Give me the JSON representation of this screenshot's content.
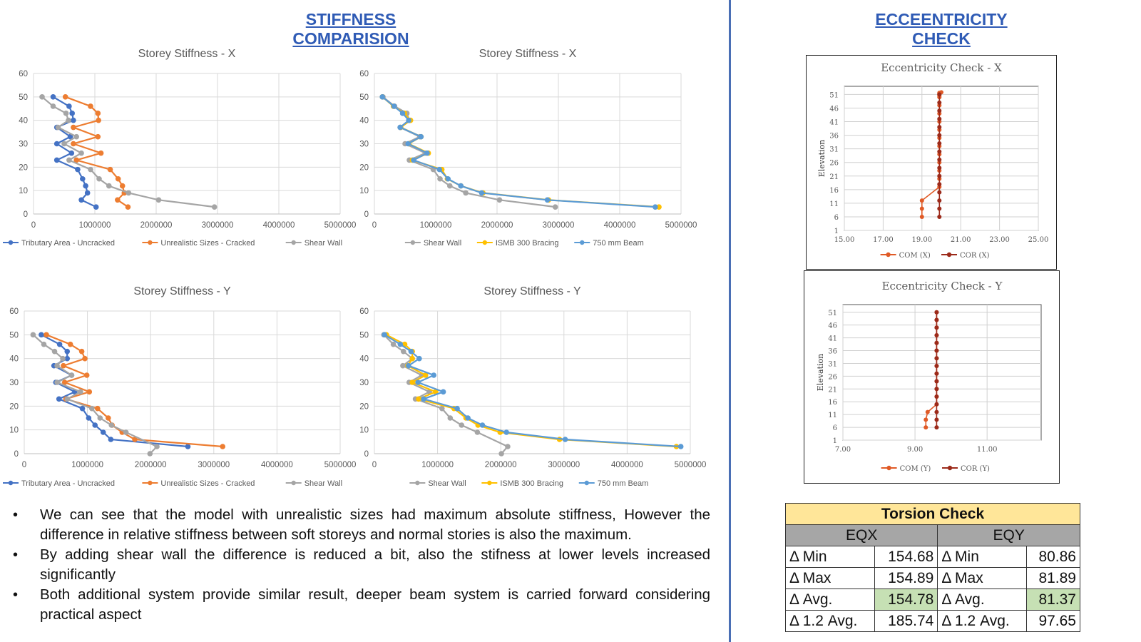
{
  "page": {
    "left_title": "STIFFNESS COMPARISION",
    "right_title": "ECCEENTRICITY CHECK"
  },
  "chart_data": [
    {
      "id": "sx1",
      "type": "line",
      "title": "Storey Stiffness - X",
      "xlim": [
        0,
        5000000
      ],
      "ylim": [
        0,
        60
      ],
      "xticks": [
        0,
        1000000,
        2000000,
        3000000,
        4000000,
        5000000
      ],
      "xtick_labels": [
        "0",
        "1000000",
        "2000000",
        "3000000",
        "4000000",
        "5000000"
      ],
      "yticks": [
        0,
        10,
        20,
        30,
        40,
        50,
        60
      ],
      "ytick_labels": [
        "0",
        "10",
        "20",
        "30",
        "40",
        "50",
        "60"
      ],
      "grid": true,
      "legend": "bottom",
      "series": [
        {
          "name": "Tributary Area - Uncracked",
          "color": "#4472c4",
          "x": [
            1020000,
            780000,
            880000,
            850000,
            800000,
            720000,
            380000,
            620000,
            380000,
            600000,
            380000,
            650000,
            630000,
            580000,
            320000
          ],
          "y": [
            3,
            6,
            9,
            12,
            15,
            19,
            23,
            26,
            30,
            33,
            37,
            40,
            43,
            46,
            50
          ]
        },
        {
          "name": "Unrealistic Sizes - Cracked",
          "color": "#ed7d31",
          "x": [
            1540000,
            1370000,
            1480000,
            1450000,
            1380000,
            1250000,
            700000,
            1100000,
            650000,
            1050000,
            650000,
            1060000,
            1050000,
            930000,
            520000
          ],
          "y": [
            3,
            6,
            9,
            12,
            15,
            19,
            23,
            26,
            30,
            33,
            37,
            40,
            43,
            46,
            50
          ]
        },
        {
          "name": "Shear Wall",
          "color": "#a5a5a5",
          "x": [
            2950000,
            2040000,
            1550000,
            1230000,
            1070000,
            930000,
            580000,
            780000,
            500000,
            700000,
            400000,
            570000,
            530000,
            320000,
            140000
          ],
          "y": [
            3,
            6,
            9,
            12,
            15,
            19,
            23,
            26,
            30,
            33,
            37,
            40,
            43,
            46,
            50
          ]
        }
      ]
    },
    {
      "id": "sx2",
      "type": "line",
      "title": "Storey Stiffness - X",
      "xlim": [
        0,
        5000000
      ],
      "ylim": [
        0,
        60
      ],
      "xticks": [
        0,
        1000000,
        2000000,
        3000000,
        4000000,
        5000000
      ],
      "xtick_labels": [
        "0",
        "1000000",
        "2000000",
        "3000000",
        "4000000",
        "5000000"
      ],
      "yticks": [
        0,
        10,
        20,
        30,
        40,
        50,
        60
      ],
      "ytick_labels": [
        "0",
        "10",
        "20",
        "30",
        "40",
        "50",
        "60"
      ],
      "grid": true,
      "legend": "bottom",
      "series": [
        {
          "name": "Shear Wall",
          "color": "#a5a5a5",
          "x": [
            2950000,
            2040000,
            1490000,
            1230000,
            1070000,
            960000,
            570000,
            830000,
            500000,
            740000,
            420000,
            570000,
            530000,
            330000,
            140000
          ],
          "y": [
            3,
            6,
            9,
            12,
            15,
            19,
            23,
            26,
            30,
            33,
            37,
            40,
            43,
            46,
            50
          ]
        },
        {
          "name": "ISMB 300 Bracing",
          "color": "#ffc000",
          "x": [
            4640000,
            2840000,
            1770000,
            1410000,
            1190000,
            1100000,
            620000,
            880000,
            560000,
            760000,
            430000,
            590000,
            490000,
            310000,
            130000
          ],
          "y": [
            3,
            6,
            9,
            12,
            15,
            19,
            23,
            26,
            30,
            33,
            37,
            40,
            43,
            46,
            50
          ]
        },
        {
          "name": "750 mm Beam",
          "color": "#5b9bd5",
          "x": [
            4580000,
            2820000,
            1750000,
            1410000,
            1200000,
            1060000,
            640000,
            860000,
            550000,
            760000,
            420000,
            560000,
            460000,
            320000,
            130000
          ],
          "y": [
            3,
            6,
            9,
            12,
            15,
            19,
            23,
            26,
            30,
            33,
            37,
            40,
            43,
            46,
            50
          ]
        }
      ]
    },
    {
      "id": "sy1",
      "type": "line",
      "title": "Storey Stiffness - Y",
      "xlim": [
        0,
        5000000
      ],
      "ylim": [
        0,
        60
      ],
      "xticks": [
        0,
        1000000,
        2000000,
        3000000,
        4000000,
        5000000
      ],
      "xtick_labels": [
        "0",
        "1000000",
        "2000000",
        "3000000",
        "4000000",
        "5000000"
      ],
      "yticks": [
        0,
        10,
        20,
        30,
        40,
        50,
        60
      ],
      "ytick_labels": [
        "0",
        "10",
        "20",
        "30",
        "40",
        "50",
        "60"
      ],
      "grid": true,
      "legend": "bottom",
      "series": [
        {
          "name": "Tributary Area - Uncracked",
          "color": "#4472c4",
          "x": [
            2590000,
            1370000,
            1250000,
            1120000,
            1020000,
            920000,
            550000,
            800000,
            500000,
            750000,
            470000,
            680000,
            680000,
            560000,
            270000
          ],
          "y": [
            3,
            6,
            9,
            12,
            15,
            19,
            23,
            26,
            30,
            33,
            37,
            40,
            43,
            46,
            50
          ]
        },
        {
          "name": "Unrealistic Sizes - Cracked",
          "color": "#ed7d31",
          "x": [
            3140000,
            1750000,
            1550000,
            1390000,
            1330000,
            1160000,
            660000,
            1030000,
            640000,
            990000,
            620000,
            960000,
            910000,
            730000,
            350000
          ],
          "y": [
            3,
            6,
            9,
            12,
            15,
            19,
            23,
            26,
            30,
            33,
            37,
            40,
            43,
            46,
            50
          ]
        },
        {
          "name": "Shear Wall",
          "color": "#a5a5a5",
          "x": [
            1990000,
            2100000,
            1610000,
            1380000,
            1200000,
            1070000,
            680000,
            890000,
            520000,
            750000,
            520000,
            610000,
            480000,
            310000,
            140000
          ],
          "y": [
            0,
            3,
            9,
            12,
            15,
            19,
            23,
            26,
            30,
            33,
            37,
            40,
            43,
            46,
            50
          ]
        }
      ]
    },
    {
      "id": "sy2",
      "type": "line",
      "title": "Storey Stiffness - Y",
      "xlim": [
        0,
        5000000
      ],
      "ylim": [
        0,
        60
      ],
      "xticks": [
        0,
        1000000,
        2000000,
        3000000,
        4000000,
        5000000
      ],
      "xtick_labels": [
        "0",
        "1000000",
        "2000000",
        "3000000",
        "4000000",
        "5000000"
      ],
      "yticks": [
        0,
        10,
        20,
        30,
        40,
        50,
        60
      ],
      "ytick_labels": [
        "0",
        "10",
        "20",
        "30",
        "40",
        "50",
        "60"
      ],
      "grid": true,
      "legend": "bottom",
      "series": [
        {
          "name": "Shear Wall",
          "color": "#a5a5a5",
          "x": [
            2010000,
            2110000,
            1630000,
            1380000,
            1200000,
            1070000,
            650000,
            870000,
            550000,
            750000,
            450000,
            600000,
            460000,
            300000,
            150000
          ],
          "y": [
            0,
            3,
            9,
            12,
            15,
            19,
            23,
            26,
            30,
            33,
            37,
            40,
            43,
            46,
            50
          ]
        },
        {
          "name": "ISMB 300 Bracing",
          "color": "#ffc000",
          "x": [
            4780000,
            2930000,
            1990000,
            1640000,
            1450000,
            1260000,
            700000,
            970000,
            600000,
            810000,
            530000,
            600000,
            600000,
            480000,
            190000
          ],
          "y": [
            3,
            6,
            9,
            12,
            15,
            19,
            23,
            26,
            30,
            33,
            37,
            40,
            43,
            46,
            50
          ]
        },
        {
          "name": "750 mm Beam",
          "color": "#5b9bd5",
          "x": [
            4850000,
            3020000,
            2090000,
            1710000,
            1480000,
            1310000,
            780000,
            1090000,
            690000,
            940000,
            540000,
            710000,
            580000,
            410000,
            160000
          ],
          "y": [
            3,
            6,
            9,
            12,
            15,
            19,
            23,
            26,
            30,
            33,
            37,
            40,
            43,
            46,
            50
          ]
        }
      ]
    },
    {
      "id": "ex",
      "type": "line",
      "title": "Eccentricity Check - X",
      "ylabel": "Elevation",
      "xlim": [
        15,
        25
      ],
      "ylim": [
        1,
        54
      ],
      "xticks": [
        15,
        17,
        19,
        21,
        23,
        25
      ],
      "xtick_labels": [
        "15.00",
        "17.00",
        "19.00",
        "21.00",
        "23.00",
        "25.00"
      ],
      "yticks": [
        1,
        6,
        11,
        16,
        21,
        26,
        31,
        36,
        41,
        46,
        51
      ],
      "ytick_labels": [
        "1",
        "6",
        "11",
        "16",
        "21",
        "26",
        "31",
        "36",
        "41",
        "46",
        "51"
      ],
      "grid": true,
      "legend": "bottom",
      "series": [
        {
          "name": "COM (X)",
          "color": "#e05a26",
          "x": [
            19.0,
            19.0,
            19.0,
            19.9,
            19.9,
            19.9,
            19.9,
            19.9,
            19.9,
            19.9,
            19.9,
            19.9,
            19.9,
            19.9,
            19.9,
            19.9,
            19.9,
            19.9,
            19.9,
            20.0
          ],
          "y": [
            6,
            9,
            12,
            17,
            20,
            23,
            26,
            29,
            32,
            35,
            38,
            41,
            44,
            47,
            50,
            50.5,
            51,
            51.3,
            51.6,
            51.8
          ]
        },
        {
          "name": "COR (X)",
          "color": "#9c2a1a",
          "x": [
            19.9,
            19.9,
            19.9,
            19.9,
            19.9,
            19.9,
            19.9,
            19.9,
            19.9,
            19.9,
            19.9,
            19.9,
            19.9,
            19.9,
            19.9,
            19.9
          ],
          "y": [
            6,
            9,
            12,
            15,
            18,
            21,
            24,
            27,
            30,
            33,
            36,
            39,
            42,
            45,
            48,
            51
          ]
        }
      ]
    },
    {
      "id": "ey",
      "type": "line",
      "title": "Eccentricity Check - Y",
      "ylabel": "Elevation",
      "xlim": [
        7,
        12.5
      ],
      "ylim": [
        1,
        54
      ],
      "xticks": [
        7,
        9,
        11
      ],
      "xtick_labels": [
        "7.00",
        "9.00",
        "11.00"
      ],
      "yticks": [
        1,
        6,
        11,
        16,
        21,
        26,
        31,
        36,
        41,
        46,
        51
      ],
      "ytick_labels": [
        "1",
        "6",
        "11",
        "16",
        "21",
        "26",
        "31",
        "36",
        "41",
        "46",
        "51"
      ],
      "grid": true,
      "legend": "bottom",
      "series": [
        {
          "name": "COM (Y)",
          "color": "#e05a26",
          "x": [
            9.3,
            9.3,
            9.35,
            9.6,
            9.6,
            9.6,
            9.6,
            9.6,
            9.6,
            9.6,
            9.6,
            9.6,
            9.6,
            9.6,
            9.6,
            9.6
          ],
          "y": [
            6,
            9,
            12,
            15,
            18,
            21,
            24,
            27,
            30,
            33,
            36,
            39,
            42,
            45,
            48,
            51
          ]
        },
        {
          "name": "COR (Y)",
          "color": "#9c2a1a",
          "x": [
            9.6,
            9.6,
            9.6,
            9.6,
            9.6,
            9.6,
            9.6,
            9.6,
            9.6,
            9.6,
            9.6,
            9.6,
            9.6,
            9.6,
            9.6,
            9.6
          ],
          "y": [
            6,
            9,
            12,
            15,
            18,
            21,
            24,
            27,
            30,
            33,
            36,
            39,
            42,
            45,
            48,
            51
          ]
        }
      ]
    }
  ],
  "bullets": [
    "We can see that the model with unrealistic sizes had maximum absolute stiffness, However the difference in relative stiffness between soft storeys and normal stories is also the maximum.",
    "By adding shear wall the difference is reduced a bit, also the stifness at lower levels increased significantly",
    "Both additional system provide similar result, deeper beam system is carried forward considering practical aspect"
  ],
  "torsion": {
    "title": "Torsion Check",
    "col1": "EQX",
    "col2": "EQY",
    "rows": [
      {
        "label": "Δ Min",
        "eqx": "154.68",
        "eqy": "80.86"
      },
      {
        "label": "Δ Max",
        "eqx": "154.89",
        "eqy": "81.89"
      },
      {
        "label": "Δ Avg.",
        "eqx": "154.78",
        "eqy": "81.37"
      },
      {
        "label": "Δ 1.2 Avg.",
        "eqx": "185.74",
        "eqy": "97.65"
      }
    ]
  }
}
